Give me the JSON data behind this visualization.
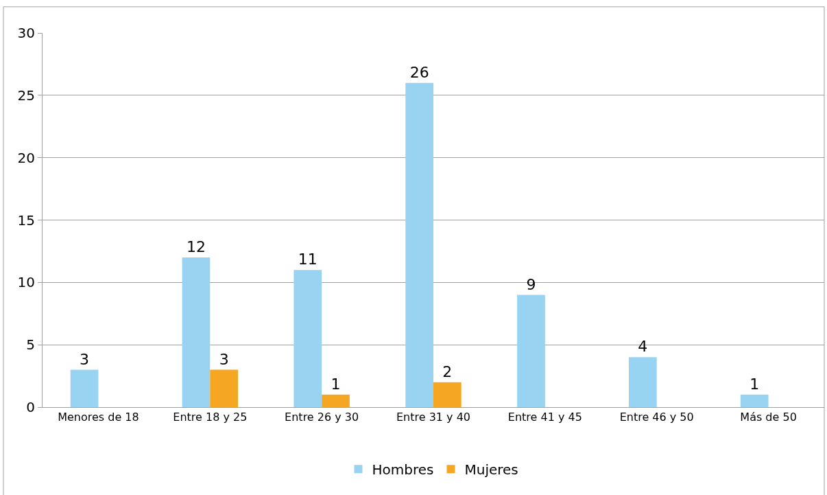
{
  "chart_data": {
    "type": "bar",
    "categories": [
      "Menores de 18",
      "Entre 18 y 25",
      "Entre 26 y 30",
      "Entre 31 y 40",
      "Entre 41 y 45",
      "Entre 46 y 50",
      "Más de 50"
    ],
    "series": [
      {
        "name": "Hombres",
        "color": "#99d3f2",
        "values": [
          3,
          12,
          11,
          26,
          9,
          4,
          1
        ],
        "value_labels": [
          "3",
          "12",
          "11",
          "26",
          "9",
          "4",
          "1"
        ]
      },
      {
        "name": "Mujeres",
        "color": "#f5a623",
        "values": [
          0,
          3,
          1,
          2,
          0,
          0,
          0
        ],
        "value_labels": [
          null,
          "3",
          "1",
          "2",
          null,
          null,
          null
        ]
      }
    ],
    "ylim": [
      0,
      30
    ],
    "yticks": [
      0,
      5,
      10,
      15,
      20,
      25,
      30
    ],
    "grid": "y",
    "legend": "bottom"
  }
}
